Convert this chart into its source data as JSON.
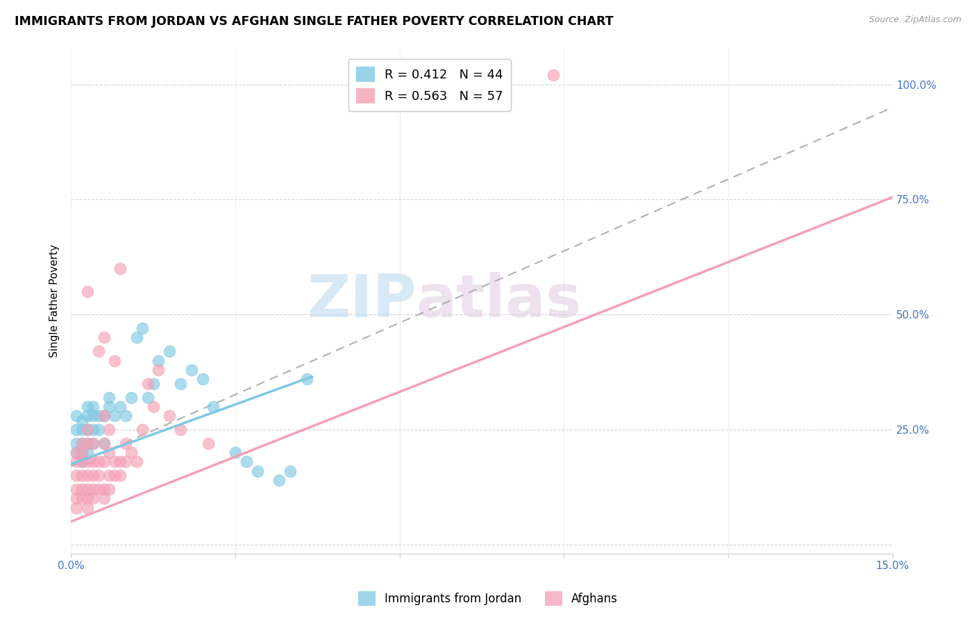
{
  "title": "IMMIGRANTS FROM JORDAN VS AFGHAN SINGLE FATHER POVERTY CORRELATION CHART",
  "source": "Source: ZipAtlas.com",
  "ylabel": "Single Father Poverty",
  "yticks": [
    0.0,
    0.25,
    0.5,
    0.75,
    1.0
  ],
  "ytick_labels": [
    "",
    "25.0%",
    "50.0%",
    "75.0%",
    "100.0%"
  ],
  "xticks": [
    0.0,
    0.03,
    0.06,
    0.09,
    0.12,
    0.15
  ],
  "xlim": [
    0.0,
    0.15
  ],
  "ylim": [
    -0.02,
    1.08
  ],
  "watermark_zip": "ZIP",
  "watermark_atlas": "atlas",
  "legend_entries": [
    {
      "label": "R = 0.412   N = 44",
      "color": "#7ec8e3"
    },
    {
      "label": "R = 0.563   N = 57",
      "color": "#f4a0b5"
    }
  ],
  "legend_bottom": [
    "Immigrants from Jordan",
    "Afghans"
  ],
  "jordan_color": "#7ec8e3",
  "afghan_color": "#f4a0b5",
  "jordan_scatter": [
    [
      0.001,
      0.2
    ],
    [
      0.001,
      0.22
    ],
    [
      0.001,
      0.25
    ],
    [
      0.001,
      0.28
    ],
    [
      0.002,
      0.18
    ],
    [
      0.002,
      0.2
    ],
    [
      0.002,
      0.22
    ],
    [
      0.002,
      0.25
    ],
    [
      0.002,
      0.27
    ],
    [
      0.003,
      0.2
    ],
    [
      0.003,
      0.22
    ],
    [
      0.003,
      0.25
    ],
    [
      0.003,
      0.28
    ],
    [
      0.003,
      0.3
    ],
    [
      0.004,
      0.22
    ],
    [
      0.004,
      0.25
    ],
    [
      0.004,
      0.28
    ],
    [
      0.004,
      0.3
    ],
    [
      0.005,
      0.25
    ],
    [
      0.005,
      0.28
    ],
    [
      0.006,
      0.22
    ],
    [
      0.006,
      0.28
    ],
    [
      0.007,
      0.3
    ],
    [
      0.007,
      0.32
    ],
    [
      0.008,
      0.28
    ],
    [
      0.009,
      0.3
    ],
    [
      0.01,
      0.28
    ],
    [
      0.011,
      0.32
    ],
    [
      0.012,
      0.45
    ],
    [
      0.013,
      0.47
    ],
    [
      0.014,
      0.32
    ],
    [
      0.015,
      0.35
    ],
    [
      0.016,
      0.4
    ],
    [
      0.018,
      0.42
    ],
    [
      0.02,
      0.35
    ],
    [
      0.022,
      0.38
    ],
    [
      0.024,
      0.36
    ],
    [
      0.026,
      0.3
    ],
    [
      0.03,
      0.2
    ],
    [
      0.032,
      0.18
    ],
    [
      0.034,
      0.16
    ],
    [
      0.038,
      0.14
    ],
    [
      0.04,
      0.16
    ],
    [
      0.043,
      0.36
    ]
  ],
  "afghan_scatter": [
    [
      0.001,
      0.08
    ],
    [
      0.001,
      0.1
    ],
    [
      0.001,
      0.12
    ],
    [
      0.001,
      0.15
    ],
    [
      0.001,
      0.18
    ],
    [
      0.001,
      0.2
    ],
    [
      0.002,
      0.1
    ],
    [
      0.002,
      0.12
    ],
    [
      0.002,
      0.15
    ],
    [
      0.002,
      0.18
    ],
    [
      0.002,
      0.2
    ],
    [
      0.002,
      0.22
    ],
    [
      0.003,
      0.08
    ],
    [
      0.003,
      0.1
    ],
    [
      0.003,
      0.12
    ],
    [
      0.003,
      0.15
    ],
    [
      0.003,
      0.18
    ],
    [
      0.003,
      0.22
    ],
    [
      0.003,
      0.25
    ],
    [
      0.003,
      0.55
    ],
    [
      0.004,
      0.1
    ],
    [
      0.004,
      0.12
    ],
    [
      0.004,
      0.15
    ],
    [
      0.004,
      0.18
    ],
    [
      0.004,
      0.22
    ],
    [
      0.005,
      0.12
    ],
    [
      0.005,
      0.15
    ],
    [
      0.005,
      0.18
    ],
    [
      0.005,
      0.42
    ],
    [
      0.006,
      0.1
    ],
    [
      0.006,
      0.12
    ],
    [
      0.006,
      0.18
    ],
    [
      0.006,
      0.22
    ],
    [
      0.006,
      0.28
    ],
    [
      0.006,
      0.45
    ],
    [
      0.007,
      0.12
    ],
    [
      0.007,
      0.15
    ],
    [
      0.007,
      0.2
    ],
    [
      0.007,
      0.25
    ],
    [
      0.008,
      0.15
    ],
    [
      0.008,
      0.18
    ],
    [
      0.008,
      0.4
    ],
    [
      0.009,
      0.15
    ],
    [
      0.009,
      0.18
    ],
    [
      0.009,
      0.6
    ],
    [
      0.01,
      0.18
    ],
    [
      0.01,
      0.22
    ],
    [
      0.011,
      0.2
    ],
    [
      0.012,
      0.18
    ],
    [
      0.013,
      0.25
    ],
    [
      0.014,
      0.35
    ],
    [
      0.015,
      0.3
    ],
    [
      0.016,
      0.38
    ],
    [
      0.018,
      0.28
    ],
    [
      0.02,
      0.25
    ],
    [
      0.025,
      0.22
    ],
    [
      0.088,
      1.02
    ]
  ],
  "jordan_line": {
    "x0": 0.0,
    "y0": 0.175,
    "x1": 0.044,
    "y1": 0.365
  },
  "afghan_line": {
    "x0": 0.0,
    "y0": 0.05,
    "x1": 0.15,
    "y1": 0.755
  },
  "dashed_line": {
    "x0": 0.0,
    "y0": 0.17,
    "x1": 0.15,
    "y1": 0.95
  },
  "axis_label_color": "#4472c4",
  "grid_color": "#d0d0d0",
  "title_fontsize": 12.5,
  "axis_fontsize": 11,
  "tick_fontsize": 11
}
